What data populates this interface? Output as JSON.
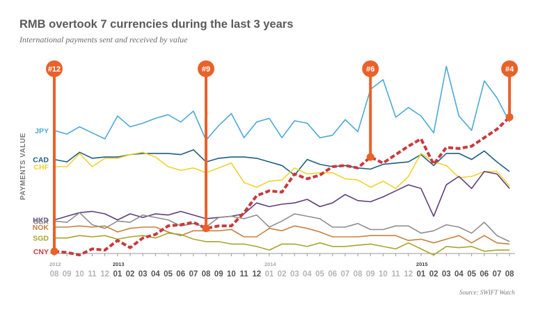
{
  "chart_data": {
    "type": "line",
    "title": "RMB overtook 7 currencies during the last 3 years",
    "subtitle": "International payments sent and received by value",
    "ylabel": "PAYMENTS VALUE",
    "source": "Source: SWIFT Watch",
    "y_scale": "rank (1 = top)",
    "ylim": [
      0,
      14
    ],
    "x": [
      "08",
      "09",
      "10",
      "11",
      "12",
      "01",
      "02",
      "03",
      "04",
      "05",
      "06",
      "07",
      "08",
      "09",
      "10",
      "11",
      "12",
      "01",
      "02",
      "03",
      "04",
      "05",
      "06",
      "07",
      "08",
      "09",
      "10",
      "11",
      "12",
      "01",
      "02",
      "03",
      "04",
      "05",
      "06",
      "07",
      "08"
    ],
    "year_labels": [
      {
        "label": "2012",
        "index": 0
      },
      {
        "label": "2013",
        "index": 5
      },
      {
        "label": "2014",
        "index": 17
      },
      {
        "label": "2015",
        "index": 29
      }
    ],
    "series": [
      {
        "name": "JPY",
        "color": "#4ba9d6",
        "values": [
          2.6,
          2.9,
          2.3,
          2.8,
          3.3,
          1.4,
          2.3,
          2.0,
          1.6,
          1.3,
          1.9,
          1.0,
          3.4,
          2.2,
          1.2,
          3.2,
          1.9,
          1.6,
          3.2,
          1.8,
          2.0,
          3.2,
          3.0,
          1.7,
          2.7,
          -0.8,
          -1.6,
          1.5,
          0.7,
          1.4,
          2.8,
          -2.7,
          1.4,
          2.6,
          -1.5,
          -0.1,
          1.9
        ]
      },
      {
        "name": "CAD",
        "color": "#1f5c82",
        "values": [
          5.0,
          5.2,
          4.4,
          4.9,
          4.8,
          4.8,
          4.6,
          4.5,
          4.5,
          4.5,
          4.6,
          4.2,
          5.2,
          4.9,
          4.8,
          4.8,
          4.9,
          5.2,
          5.5,
          6.3,
          5.0,
          5.4,
          5.6,
          5.5,
          5.7,
          5.8,
          5.4,
          5.3,
          5.2,
          4.6,
          5.5,
          4.5,
          4.5,
          5.0,
          4.3,
          5.2,
          6.0
        ]
      },
      {
        "name": "CHF",
        "color": "#f2d22e",
        "values": [
          5.6,
          5.6,
          4.5,
          5.6,
          4.9,
          4.9,
          4.6,
          4.4,
          4.8,
          5.6,
          5.9,
          5.7,
          6.1,
          5.7,
          5.3,
          6.9,
          7.3,
          6.8,
          6.7,
          5.7,
          6.2,
          6.1,
          6.1,
          6.6,
          6.7,
          7.3,
          6.8,
          7.4,
          6.4,
          4.5,
          5.2,
          5.5,
          6.5,
          6.4,
          6.0,
          6.0,
          7.2
        ]
      },
      {
        "name": "HKD",
        "color": "#5e3d7f",
        "values": [
          10.0,
          9.7,
          9.4,
          9.3,
          9.5,
          10.0,
          9.5,
          9.8,
          9.5,
          9.6,
          9.3,
          9.6,
          9.9,
          9.8,
          9.7,
          9.5,
          8.6,
          8.9,
          8.7,
          8.6,
          8.3,
          8.9,
          8.6,
          7.9,
          8.4,
          8.5,
          8.1,
          7.6,
          7.1,
          7.4,
          9.7,
          7.1,
          6.4,
          7.4,
          6.0,
          6.2,
          7.4
        ]
      },
      {
        "name": "SEK",
        "color": "#8d8d8d",
        "values": [
          10.1,
          10.2,
          9.4,
          10.4,
          10.7,
          10.1,
          10.2,
          9.6,
          9.8,
          10.0,
          10.5,
          10.3,
          10.6,
          9.8,
          9.7,
          9.9,
          9.6,
          10.6,
          10.1,
          9.5,
          9.7,
          9.9,
          10.6,
          10.6,
          10.3,
          10.8,
          10.8,
          10.5,
          10.5,
          11.1,
          10.9,
          10.4,
          10.6,
          11.1,
          10.2,
          11.3,
          11.8
        ]
      },
      {
        "name": "NOK",
        "color": "#c7803e",
        "values": [
          10.6,
          10.6,
          10.5,
          10.6,
          10.5,
          11.0,
          10.7,
          10.6,
          10.6,
          11.0,
          11.3,
          10.9,
          10.9,
          10.9,
          10.8,
          11.4,
          11.4,
          10.7,
          10.9,
          10.5,
          10.7,
          11.0,
          11.4,
          11.4,
          11.4,
          11.3,
          11.3,
          11.3,
          11.7,
          11.6,
          11.9,
          11.6,
          11.3,
          11.9,
          11.3,
          11.9,
          12.0
        ]
      },
      {
        "name": "SGD",
        "color": "#a6a52c",
        "values": [
          11.5,
          11.5,
          11.3,
          11.4,
          11.3,
          11.6,
          11.4,
          11.3,
          11.5,
          11.1,
          11.2,
          11.6,
          11.8,
          11.8,
          12.0,
          12.0,
          12.2,
          12.5,
          12.0,
          12.0,
          12.2,
          11.9,
          12.2,
          12.2,
          12.1,
          12.0,
          12.2,
          12.4,
          11.9,
          12.4,
          12.9,
          12.2,
          12.3,
          12.2,
          12.6,
          12.5,
          12.5
        ]
      },
      {
        "name": "CNY",
        "color": "#c73a3d",
        "dashed": true,
        "values": [
          12.6,
          12.7,
          12.9,
          12.4,
          12.5,
          11.7,
          12.3,
          11.5,
          11.2,
          10.5,
          10.4,
          10.2,
          10.7,
          10.5,
          10.5,
          9.4,
          8.0,
          7.6,
          7.7,
          6.2,
          6.6,
          6.3,
          5.6,
          5.5,
          5.7,
          4.8,
          5.3,
          4.6,
          3.9,
          3.3,
          5.4,
          4.0,
          4.1,
          3.9,
          3.2,
          2.5,
          1.5
        ]
      }
    ],
    "annotations": [
      {
        "label": "#12",
        "series": "CNY",
        "index": 0
      },
      {
        "label": "#9",
        "series": "CNY",
        "index": 12
      },
      {
        "label": "#6",
        "series": "CNY",
        "index": 25
      },
      {
        "label": "#4",
        "series": "CNY",
        "index": 36
      }
    ],
    "accent_color": "#e8622a"
  }
}
